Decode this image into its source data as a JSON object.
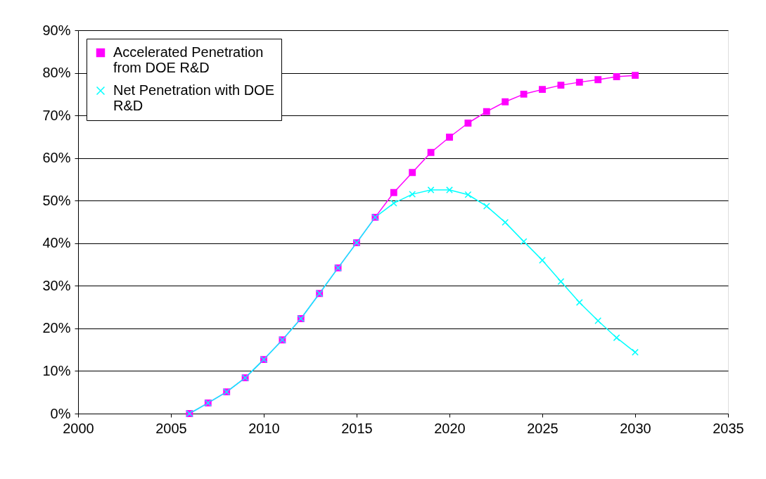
{
  "chart_data": {
    "type": "line",
    "x": [
      2006,
      2007,
      2008,
      2009,
      2010,
      2011,
      2012,
      2013,
      2014,
      2015,
      2016,
      2017,
      2018,
      2019,
      2020,
      2021,
      2022,
      2023,
      2024,
      2025,
      2026,
      2027,
      2028,
      2029,
      2030
    ],
    "series": [
      {
        "name": "Accelerated Penetration from DOE R&D",
        "color": "#ff00ff",
        "marker": "square",
        "values": [
          0,
          2.5,
          5.1,
          8.4,
          12.7,
          17.3,
          22.3,
          28.2,
          34.2,
          40.1,
          46.1,
          51.9,
          56.6,
          61.3,
          64.9,
          68.2,
          70.9,
          73.2,
          75.0,
          76.1,
          77.1,
          77.8,
          78.4,
          79.1,
          79.4
        ]
      },
      {
        "name": "Net Penetration with DOE R&D",
        "color": "#00ffff",
        "marker": "cross",
        "values": [
          0,
          2.5,
          5.1,
          8.4,
          12.7,
          17.3,
          22.3,
          28.2,
          34.2,
          40.1,
          46.1,
          49.4,
          51.5,
          52.5,
          52.5,
          51.4,
          48.7,
          44.9,
          40.4,
          36.0,
          31.0,
          26.1,
          21.8,
          17.8,
          14.4
        ]
      }
    ],
    "xlim": [
      2000,
      2035
    ],
    "xticks": [
      2000,
      2005,
      2010,
      2015,
      2020,
      2025,
      2030,
      2035
    ],
    "ylim": [
      0,
      90
    ],
    "yticks": [
      {
        "value": 0,
        "label": "0%"
      },
      {
        "value": 10,
        "label": "10%"
      },
      {
        "value": 20,
        "label": "20%"
      },
      {
        "value": 30,
        "label": "30%"
      },
      {
        "value": 40,
        "label": "40%"
      },
      {
        "value": 50,
        "label": "50%"
      },
      {
        "value": 60,
        "label": "60%"
      },
      {
        "value": 70,
        "label": "70%"
      },
      {
        "value": 80,
        "label": "80%"
      },
      {
        "value": 90,
        "label": "90%"
      }
    ],
    "grid": "y",
    "legend": "top left",
    "line_style": "solid"
  }
}
